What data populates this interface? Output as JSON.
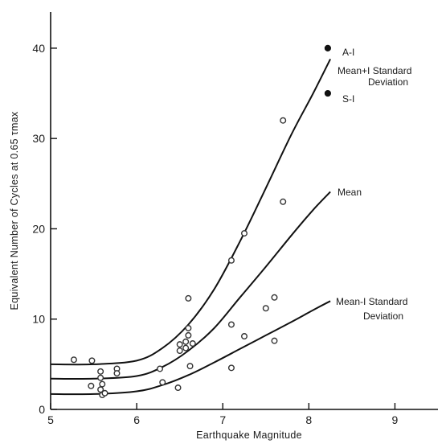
{
  "chart_data": {
    "type": "scatter",
    "title": "",
    "xlabel": "Earthquake Magnitude",
    "ylabel": "Equivalent Number of Cycles at 0.65 τmax",
    "xlim": [
      5,
      9.5
    ],
    "ylim": [
      0,
      44
    ],
    "x_ticks": [
      5,
      6,
      7,
      8,
      9
    ],
    "y_ticks": [
      0,
      10,
      20,
      30,
      40
    ],
    "grid": false,
    "points": [
      {
        "x": 5.27,
        "y": 5.5
      },
      {
        "x": 5.48,
        "y": 5.4
      },
      {
        "x": 5.47,
        "y": 2.6
      },
      {
        "x": 5.58,
        "y": 4.2
      },
      {
        "x": 5.58,
        "y": 3.5
      },
      {
        "x": 5.6,
        "y": 2.8
      },
      {
        "x": 5.58,
        "y": 2.2
      },
      {
        "x": 5.6,
        "y": 1.6
      },
      {
        "x": 5.63,
        "y": 1.8
      },
      {
        "x": 5.77,
        "y": 4.5
      },
      {
        "x": 5.77,
        "y": 4.0
      },
      {
        "x": 6.27,
        "y": 4.5
      },
      {
        "x": 6.3,
        "y": 3.0
      },
      {
        "x": 6.48,
        "y": 2.4
      },
      {
        "x": 6.5,
        "y": 7.2
      },
      {
        "x": 6.5,
        "y": 6.5
      },
      {
        "x": 6.57,
        "y": 7.5
      },
      {
        "x": 6.57,
        "y": 6.8
      },
      {
        "x": 6.6,
        "y": 12.3
      },
      {
        "x": 6.6,
        "y": 9.0
      },
      {
        "x": 6.6,
        "y": 8.2
      },
      {
        "x": 6.62,
        "y": 4.8
      },
      {
        "x": 6.65,
        "y": 7.3
      },
      {
        "x": 7.1,
        "y": 16.5
      },
      {
        "x": 7.1,
        "y": 9.4
      },
      {
        "x": 7.1,
        "y": 4.6
      },
      {
        "x": 7.25,
        "y": 19.5
      },
      {
        "x": 7.25,
        "y": 8.1
      },
      {
        "x": 7.5,
        "y": 11.2
      },
      {
        "x": 7.6,
        "y": 12.4
      },
      {
        "x": 7.6,
        "y": 7.6
      },
      {
        "x": 7.7,
        "y": 32.0
      },
      {
        "x": 7.7,
        "y": 23.0
      }
    ],
    "filled_points": [
      {
        "x": 8.22,
        "y": 40.0,
        "label": "A-I"
      },
      {
        "x": 8.22,
        "y": 35.0,
        "label": "S-I"
      }
    ],
    "curves": [
      {
        "name": "Mean+I Standard Deviation",
        "x": [
          5.0,
          5.5,
          6.0,
          6.3,
          6.6,
          6.9,
          7.2,
          7.5,
          7.8,
          8.05,
          8.25
        ],
        "y": [
          5.0,
          5.0,
          5.4,
          6.8,
          9.4,
          13.3,
          18.6,
          24.5,
          30.5,
          35.0,
          38.8
        ]
      },
      {
        "name": "Mean",
        "x": [
          5.0,
          5.5,
          6.0,
          6.3,
          6.6,
          6.9,
          7.2,
          7.5,
          7.8,
          8.05,
          8.25
        ],
        "y": [
          3.4,
          3.4,
          3.7,
          4.7,
          6.5,
          9.0,
          12.4,
          15.8,
          19.3,
          22.1,
          24.1
        ]
      },
      {
        "name": "Mean-I Standard Deviation",
        "x": [
          5.0,
          5.5,
          6.0,
          6.3,
          6.6,
          6.9,
          7.2,
          7.5,
          7.8,
          8.05,
          8.25
        ],
        "y": [
          1.7,
          1.7,
          2.0,
          2.7,
          3.8,
          5.2,
          6.7,
          8.2,
          9.7,
          11.0,
          12.0
        ]
      }
    ],
    "annotations": {
      "upper_line1": "Mean+I Standard",
      "upper_line2": "Deviation",
      "mean": "Mean",
      "lower_line1": "Mean-I Standard",
      "lower_line2": "Deviation"
    }
  }
}
